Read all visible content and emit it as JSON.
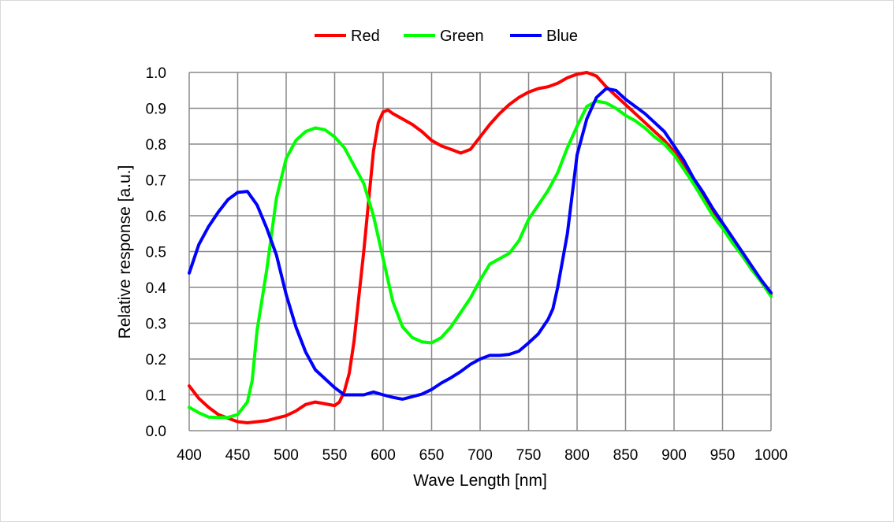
{
  "chart_data": {
    "type": "line",
    "xlabel": "Wave Length [nm]",
    "ylabel": "Relative response [a.u.]",
    "xlim": [
      400,
      1000
    ],
    "ylim": [
      0.0,
      1.0
    ],
    "xticks": [
      "400",
      "450",
      "500",
      "550",
      "600",
      "650",
      "700",
      "750",
      "800",
      "850",
      "900",
      "950",
      "1000"
    ],
    "yticks": [
      "0.0",
      "0.1",
      "0.2",
      "0.3",
      "0.4",
      "0.5",
      "0.6",
      "0.7",
      "0.8",
      "0.9",
      "1.0"
    ],
    "grid": true,
    "legend": "top-center",
    "series": [
      {
        "name": "Red",
        "color": "#ff0000",
        "x": [
          400,
          410,
          420,
          430,
          440,
          450,
          460,
          470,
          480,
          490,
          500,
          510,
          520,
          530,
          540,
          550,
          555,
          560,
          565,
          570,
          580,
          590,
          595,
          600,
          605,
          610,
          620,
          630,
          640,
          650,
          660,
          670,
          680,
          690,
          700,
          710,
          720,
          730,
          740,
          750,
          760,
          770,
          780,
          790,
          800,
          810,
          820,
          830,
          840,
          850,
          860,
          870,
          880,
          890,
          900,
          910,
          920,
          930,
          940,
          950,
          960,
          970,
          980,
          990,
          1000
        ],
        "y": [
          0.125,
          0.09,
          0.065,
          0.045,
          0.035,
          0.025,
          0.022,
          0.025,
          0.028,
          0.035,
          0.042,
          0.055,
          0.073,
          0.08,
          0.075,
          0.07,
          0.08,
          0.11,
          0.16,
          0.25,
          0.5,
          0.78,
          0.86,
          0.89,
          0.895,
          0.885,
          0.87,
          0.855,
          0.835,
          0.81,
          0.795,
          0.785,
          0.775,
          0.785,
          0.82,
          0.855,
          0.885,
          0.91,
          0.93,
          0.945,
          0.955,
          0.96,
          0.97,
          0.985,
          0.995,
          1.0,
          0.99,
          0.96,
          0.935,
          0.91,
          0.885,
          0.86,
          0.835,
          0.81,
          0.78,
          0.74,
          0.7,
          0.655,
          0.61,
          0.57,
          0.53,
          0.49,
          0.45,
          0.42,
          0.38
        ]
      },
      {
        "name": "Green",
        "color": "#00ff00",
        "x": [
          400,
          410,
          420,
          430,
          440,
          450,
          460,
          465,
          470,
          480,
          490,
          500,
          510,
          520,
          530,
          540,
          550,
          560,
          570,
          580,
          590,
          600,
          610,
          620,
          630,
          640,
          650,
          660,
          670,
          680,
          690,
          700,
          710,
          720,
          730,
          740,
          750,
          760,
          770,
          780,
          790,
          800,
          810,
          820,
          830,
          840,
          850,
          860,
          870,
          880,
          890,
          900,
          910,
          920,
          930,
          940,
          950,
          960,
          970,
          980,
          990,
          1000
        ],
        "y": [
          0.065,
          0.05,
          0.038,
          0.037,
          0.037,
          0.045,
          0.08,
          0.14,
          0.28,
          0.45,
          0.65,
          0.76,
          0.81,
          0.835,
          0.845,
          0.84,
          0.82,
          0.79,
          0.74,
          0.69,
          0.6,
          0.48,
          0.36,
          0.29,
          0.26,
          0.248,
          0.245,
          0.26,
          0.29,
          0.33,
          0.37,
          0.42,
          0.465,
          0.48,
          0.495,
          0.53,
          0.59,
          0.63,
          0.67,
          0.72,
          0.79,
          0.85,
          0.905,
          0.92,
          0.915,
          0.9,
          0.88,
          0.865,
          0.845,
          0.82,
          0.8,
          0.77,
          0.73,
          0.69,
          0.645,
          0.6,
          0.565,
          0.525,
          0.49,
          0.45,
          0.415,
          0.375
        ]
      },
      {
        "name": "Blue",
        "color": "#0000ff",
        "x": [
          400,
          410,
          420,
          430,
          440,
          450,
          460,
          470,
          480,
          490,
          500,
          510,
          520,
          530,
          540,
          550,
          560,
          570,
          580,
          590,
          600,
          610,
          620,
          630,
          640,
          650,
          660,
          670,
          680,
          690,
          700,
          710,
          720,
          730,
          740,
          750,
          760,
          770,
          775,
          780,
          790,
          800,
          810,
          820,
          830,
          840,
          850,
          860,
          870,
          880,
          890,
          900,
          910,
          920,
          930,
          940,
          950,
          960,
          970,
          980,
          990,
          1000
        ],
        "y": [
          0.44,
          0.52,
          0.57,
          0.61,
          0.645,
          0.665,
          0.668,
          0.63,
          0.565,
          0.49,
          0.38,
          0.29,
          0.22,
          0.17,
          0.145,
          0.12,
          0.1,
          0.1,
          0.1,
          0.108,
          0.1,
          0.093,
          0.088,
          0.095,
          0.102,
          0.115,
          0.133,
          0.148,
          0.165,
          0.185,
          0.2,
          0.21,
          0.21,
          0.213,
          0.222,
          0.245,
          0.27,
          0.31,
          0.34,
          0.4,
          0.55,
          0.77,
          0.87,
          0.93,
          0.955,
          0.95,
          0.925,
          0.905,
          0.885,
          0.86,
          0.835,
          0.795,
          0.755,
          0.705,
          0.665,
          0.62,
          0.58,
          0.54,
          0.5,
          0.46,
          0.42,
          0.385
        ]
      }
    ]
  }
}
